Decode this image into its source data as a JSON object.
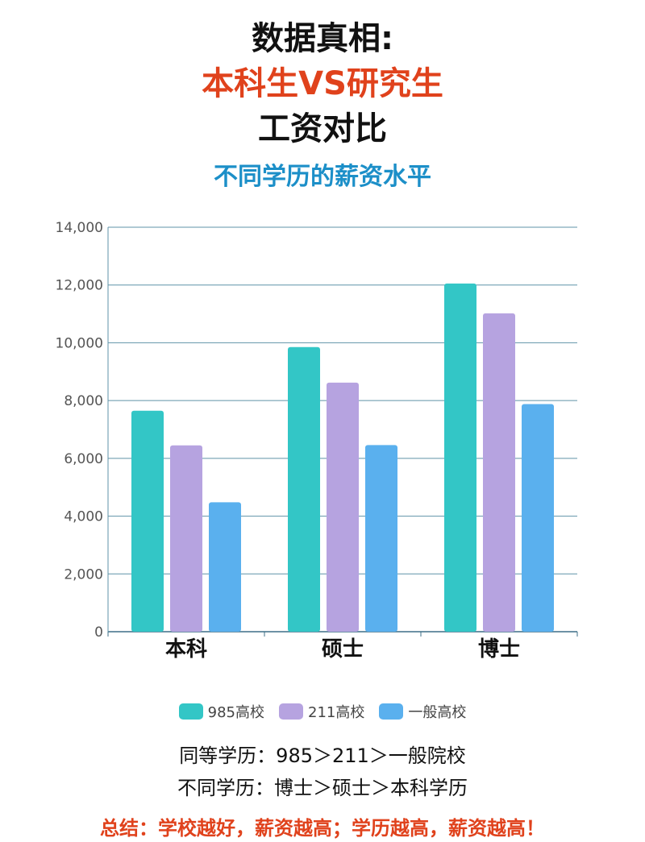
{
  "header": {
    "line1": "数据真相:",
    "line2": "本科生VS研究生",
    "line3": "工资对比"
  },
  "chart_data": {
    "type": "bar",
    "title": "不同学历的薪资水平",
    "categories": [
      "本科",
      "硕士",
      "博士"
    ],
    "series": [
      {
        "name": "985高校",
        "values": [
          7650,
          9850,
          12050
        ],
        "color": "#33c6c6"
      },
      {
        "name": "211高校",
        "values": [
          6450,
          8620,
          11020
        ],
        "color": "#b6a3e0"
      },
      {
        "name": "一般高校",
        "values": [
          4480,
          6460,
          7880
        ],
        "color": "#5ab0ee"
      }
    ],
    "ylim": [
      0,
      14000
    ],
    "yticks": [
      "0",
      "2,000",
      "4,000",
      "6,000",
      "8,000",
      "10,000",
      "12,000",
      "14,000"
    ],
    "ytick_values": [
      0,
      2000,
      4000,
      6000,
      8000,
      10000,
      12000,
      14000
    ],
    "grid": true,
    "legend_position": "bottom"
  },
  "notes": {
    "line1": "同等学历：985＞211＞一般院校",
    "line2": "不同学历：博士＞硕士＞本科学历"
  },
  "summary": "总结：学校越好，薪资越高；学历越高，薪资越高！"
}
